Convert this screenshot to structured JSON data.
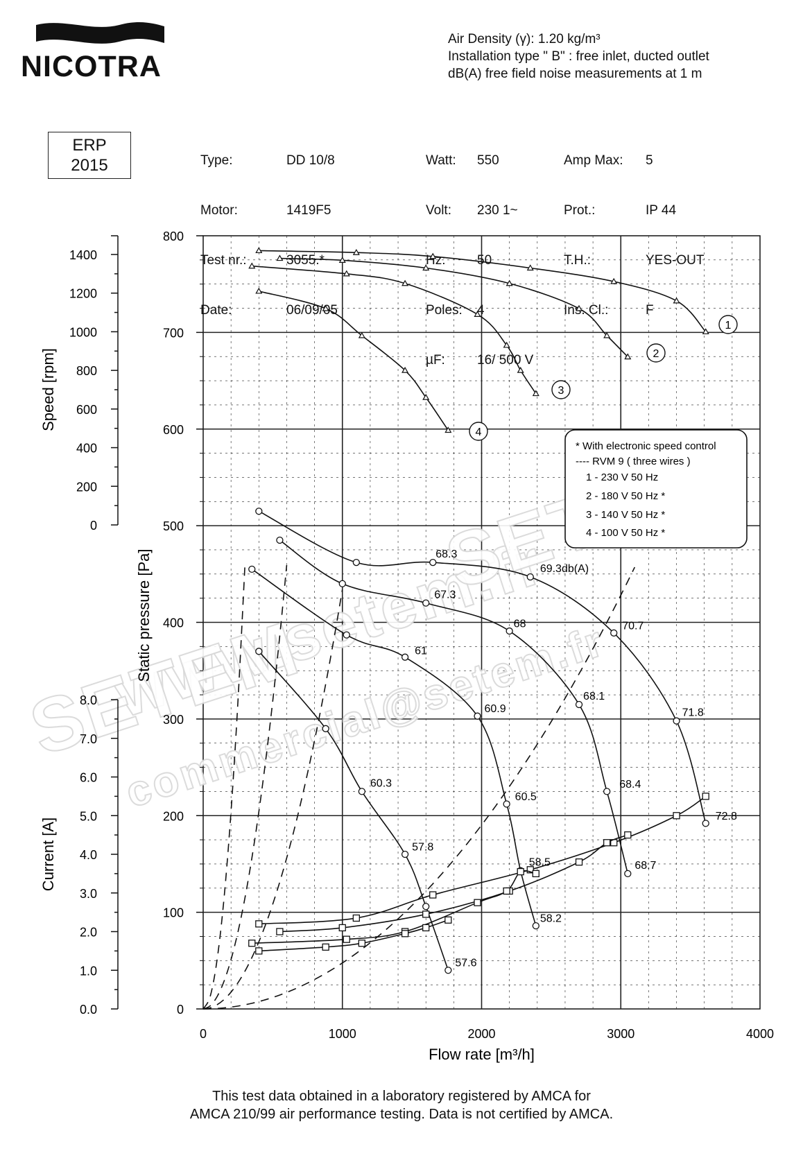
{
  "logo": {
    "brand": "NICOTRA"
  },
  "header_notes": [
    "Air Density (γ):  1.20 kg/m³",
    "Installation type \" B\"  : free inlet, ducted outlet",
    "dB(A)  free field noise measurements at 1 m"
  ],
  "erp_label": [
    "ERP",
    "2015"
  ],
  "specs": {
    "col1_keys": [
      "Type:",
      "Motor:",
      "Test nr.:",
      "Date:"
    ],
    "col1_vals": [
      "DD 10/8",
      "1419F5",
      "3055.*",
      "06/09/05"
    ],
    "col2_keys": [
      "Watt:",
      "Volt:",
      "Hz:",
      "Poles:",
      "µF:"
    ],
    "col2_vals": [
      "550",
      "230 1~",
      "50",
      "4",
      "16/ 500 V"
    ],
    "col3_keys": [
      "Amp Max:",
      "Prot.:",
      "T.H.:",
      "Ins. Cl.:"
    ],
    "col3_vals": [
      "5",
      "IP 44",
      "YES-OUT",
      "F"
    ]
  },
  "legend": {
    "lines": [
      "* With  electronic speed control",
      "---- RVM 9  ( three wires )",
      "1 - 230 V 50 Hz",
      "2 - 180 V 50 Hz *",
      "3 - 140 V 50 Hz *",
      "4 - 100 V 50 Hz *"
    ]
  },
  "footer": [
    "This test data obtained in a laboratory registered by AMCA for",
    "AMCA 210/99 air performance testing. Data is not certified by AMCA."
  ],
  "chart_data": {
    "type": "line",
    "x_axis": {
      "label": "Flow rate [m³/h]",
      "range": [
        0,
        4000
      ],
      "ticks": [
        0,
        1000,
        2000,
        3000,
        4000
      ]
    },
    "pressure_axis": {
      "label": "Static pressure [Pa]",
      "range": [
        0,
        800
      ],
      "ticks": [
        0,
        100,
        200,
        300,
        400,
        500,
        600,
        700,
        800
      ]
    },
    "speed_axis": {
      "label": "Speed [rpm]",
      "range": [
        0,
        1400
      ],
      "ticks": [
        0,
        200,
        400,
        600,
        800,
        1000,
        1200,
        1400
      ]
    },
    "current_axis": {
      "label": "Current [A]",
      "range": [
        0,
        8
      ],
      "ticks": [
        "0.0",
        "1.0",
        "2.0",
        "3.0",
        "4.0",
        "5.0",
        "6.0",
        "7.0",
        "8.0"
      ]
    },
    "curve_labels": [
      "1",
      "2",
      "3",
      "4"
    ],
    "speed_series": [
      {
        "curve": "1",
        "x": [
          400,
          1100,
          1650,
          2350,
          2950,
          3400,
          3610
        ],
        "rpm": [
          1420,
          1410,
          1390,
          1330,
          1260,
          1160,
          1000
        ]
      },
      {
        "curve": "2",
        "x": [
          550,
          1000,
          1600,
          2200,
          2700,
          2900,
          3050
        ],
        "rpm": [
          1380,
          1370,
          1330,
          1250,
          1120,
          980,
          870
        ]
      },
      {
        "curve": "3",
        "x": [
          350,
          1030,
          1450,
          1970,
          2180,
          2280,
          2390
        ],
        "rpm": [
          1340,
          1300,
          1250,
          1090,
          930,
          800,
          680
        ]
      },
      {
        "curve": "4",
        "x": [
          400,
          880,
          1140,
          1450,
          1600,
          1760
        ],
        "rpm": [
          1210,
          1120,
          980,
          800,
          660,
          490
        ]
      }
    ],
    "pressure_series": [
      {
        "curve": "1",
        "x": [
          400,
          1100,
          1650,
          2350,
          2950,
          3400,
          3610
        ],
        "pa": [
          515,
          462,
          462,
          447,
          389,
          298,
          192
        ]
      },
      {
        "curve": "2",
        "x": [
          550,
          1000,
          1600,
          2200,
          2700,
          2900,
          3050
        ],
        "pa": [
          485,
          440,
          420,
          391,
          315,
          225,
          140
        ]
      },
      {
        "curve": "3",
        "x": [
          350,
          1030,
          1450,
          1970,
          2180,
          2280,
          2390
        ],
        "pa": [
          455,
          387,
          364,
          303,
          212,
          143,
          86
        ]
      },
      {
        "curve": "4",
        "x": [
          400,
          880,
          1140,
          1450,
          1600,
          1760
        ],
        "pa": [
          370,
          290,
          225,
          160,
          106,
          40
        ]
      }
    ],
    "current_series": [
      {
        "curve": "1",
        "x": [
          400,
          1100,
          1650,
          2350,
          2950,
          3400,
          3610
        ],
        "a": [
          2.2,
          2.35,
          2.95,
          3.6,
          4.3,
          5.0,
          5.5
        ]
      },
      {
        "curve": "2",
        "x": [
          550,
          1000,
          1600,
          2200,
          2700,
          2900,
          3050
        ],
        "a": [
          2.0,
          2.1,
          2.45,
          3.05,
          3.8,
          4.3,
          4.5
        ]
      },
      {
        "curve": "3",
        "x": [
          350,
          1030,
          1450,
          1970,
          2180,
          2280,
          2390
        ],
        "a": [
          1.7,
          1.8,
          2.0,
          2.75,
          3.05,
          3.55,
          3.5
        ]
      },
      {
        "curve": "4",
        "x": [
          400,
          880,
          1140,
          1450,
          1600,
          1760
        ],
        "a": [
          1.5,
          1.6,
          1.7,
          1.95,
          2.1,
          2.3
        ]
      }
    ],
    "system_curves": [
      {
        "k": 145
      },
      {
        "k": 48
      },
      {
        "k": 28
      },
      {
        "k": 14
      }
    ],
    "db_labels": [
      {
        "x": 1670,
        "pa": 467,
        "text": "68.3"
      },
      {
        "x": 2420,
        "pa": 452,
        "text": "69.3db(A)"
      },
      {
        "x": 1660,
        "pa": 425,
        "text": "67.3"
      },
      {
        "x": 2230,
        "pa": 395,
        "text": "68"
      },
      {
        "x": 3010,
        "pa": 393,
        "text": "70.7"
      },
      {
        "x": 1520,
        "pa": 367,
        "text": "61"
      },
      {
        "x": 2020,
        "pa": 307,
        "text": "60.9"
      },
      {
        "x": 2730,
        "pa": 320,
        "text": "68.1"
      },
      {
        "x": 3440,
        "pa": 303,
        "text": "71.8"
      },
      {
        "x": 1200,
        "pa": 230,
        "text": "60.3"
      },
      {
        "x": 2990,
        "pa": 229,
        "text": "68.4"
      },
      {
        "x": 2240,
        "pa": 216,
        "text": "60.5"
      },
      {
        "x": 3680,
        "pa": 196,
        "text": "72.8"
      },
      {
        "x": 1500,
        "pa": 164,
        "text": "57.8"
      },
      {
        "x": 3100,
        "pa": 145,
        "text": "68.7"
      },
      {
        "x": 2340,
        "pa": 148,
        "text": "58.5"
      },
      {
        "x": 2420,
        "pa": 90,
        "text": "58.2"
      },
      {
        "x": 1810,
        "pa": 44,
        "text": "57.6"
      }
    ],
    "watermarks": [
      "www.setem.fr",
      "SETEM",
      "SETEM",
      "commercial@setem.fr"
    ],
    "grid": true
  }
}
